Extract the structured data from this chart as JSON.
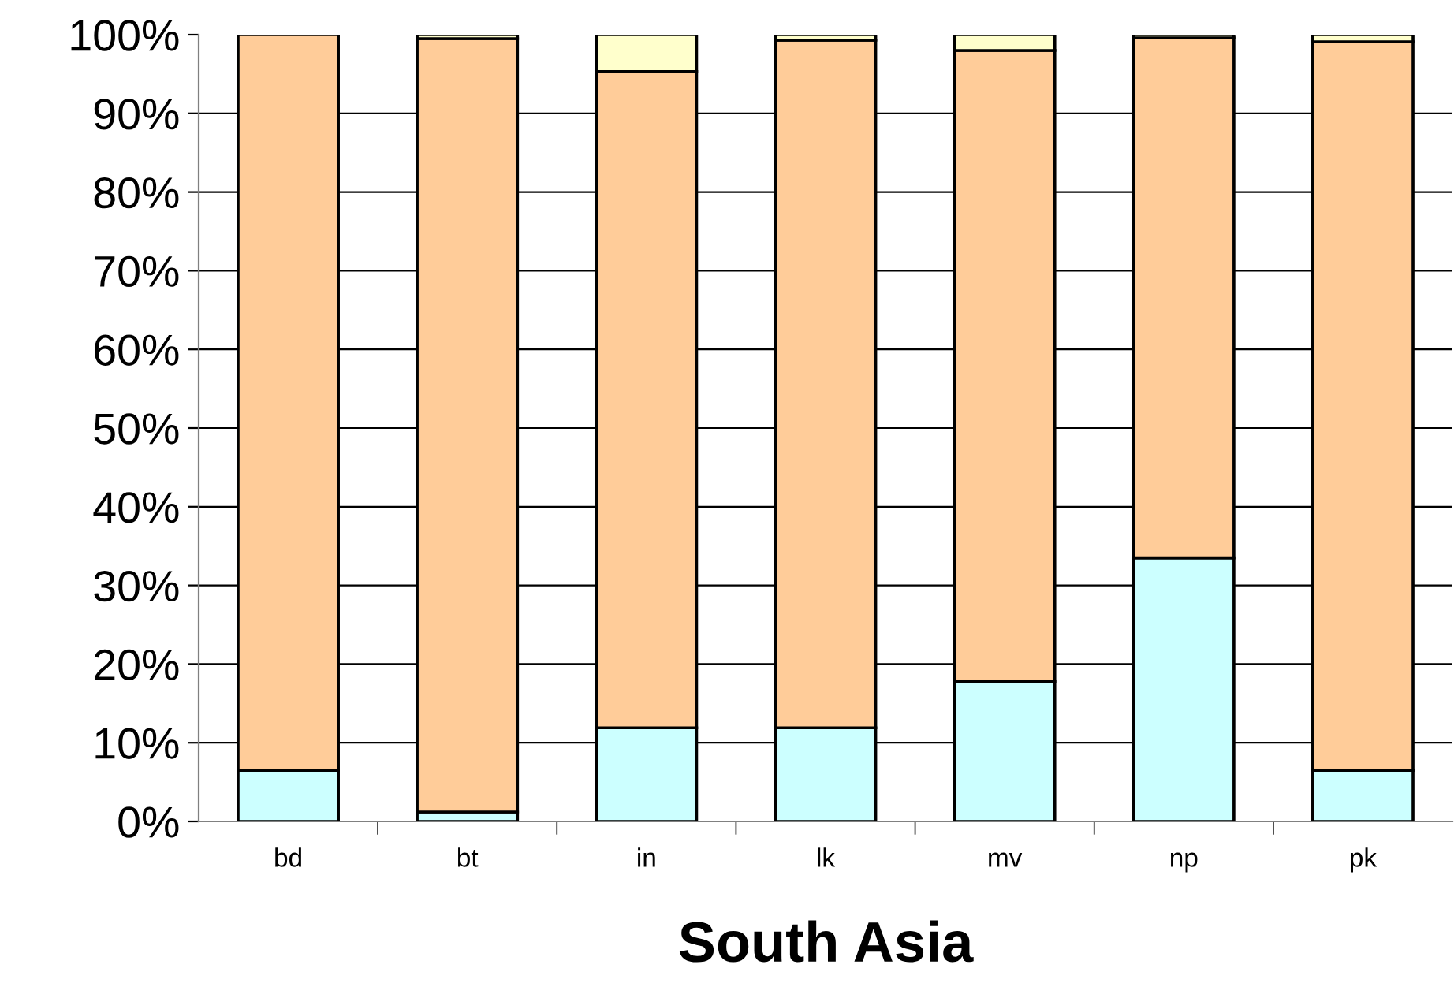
{
  "chart_data": {
    "type": "bar",
    "stacked": true,
    "xlabel": "South Asia",
    "categories": [
      "bd",
      "bt",
      "in",
      "lk",
      "mv",
      "np",
      "pk"
    ],
    "series": [
      {
        "color": "#ccffff",
        "values": [
          6.5,
          1.2,
          11.9,
          11.9,
          17.8,
          33.5,
          6.5
        ]
      },
      {
        "color": "#ffcc99",
        "values": [
          93.5,
          98.3,
          83.4,
          87.4,
          80.2,
          66.1,
          92.6
        ]
      },
      {
        "color": "#ffffcc",
        "values": [
          null,
          0.5,
          4.7,
          0.7,
          2.0,
          0.4,
          0.9
        ]
      }
    ],
    "ylim": [
      0,
      100
    ],
    "yticks": [
      {
        "value": 0,
        "label": "0%"
      },
      {
        "value": 10,
        "label": "10%"
      },
      {
        "value": 20,
        "label": "20%"
      },
      {
        "value": 30,
        "label": "30%"
      },
      {
        "value": 40,
        "label": "40%"
      },
      {
        "value": 50,
        "label": "50%"
      },
      {
        "value": 60,
        "label": "60%"
      },
      {
        "value": 70,
        "label": "70%"
      },
      {
        "value": 80,
        "label": "80%"
      },
      {
        "value": 90,
        "label": "90%"
      },
      {
        "value": 100,
        "label": "100%"
      }
    ],
    "grid": "y"
  }
}
